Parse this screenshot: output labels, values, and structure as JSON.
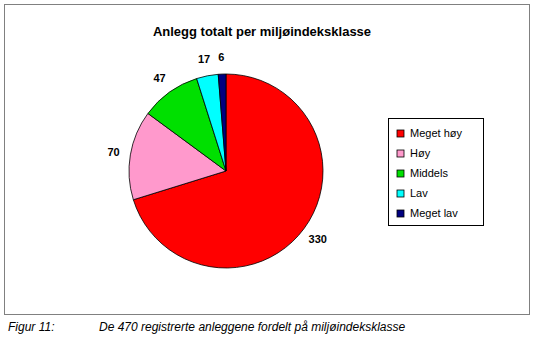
{
  "chart_data": {
    "type": "pie",
    "title": "Anlegg totalt per miljøindeksklasse",
    "categories": [
      "Meget høy",
      "Høy",
      "Middels",
      "Lav",
      "Meget lav"
    ],
    "values": [
      330,
      70,
      47,
      17,
      6
    ],
    "colors": [
      "#ff0000",
      "#ff99cc",
      "#00e000",
      "#00ffff",
      "#000080"
    ],
    "legend": "right",
    "data_labels": true,
    "caption": {
      "label": "Figur 11:",
      "text": "De 470 registrerte anleggene fordelt på miljøindeksklasse"
    }
  }
}
